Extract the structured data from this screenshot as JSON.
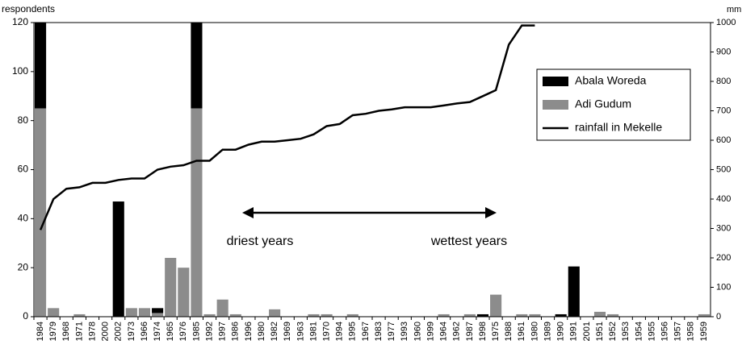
{
  "chart_data": {
    "type": "bar",
    "stacked": true,
    "y_label": "respondents",
    "y2_label": "mm",
    "annotations": [
      "driest years",
      "wettest years"
    ],
    "categories": [
      "1984",
      "1979",
      "1968",
      "1971",
      "1978",
      "2000",
      "2002",
      "1973",
      "1966",
      "1974",
      "1965",
      "1976",
      "1985",
      "1992",
      "1997",
      "1986",
      "1996",
      "1980",
      "1982",
      "1969",
      "1963",
      "1981",
      "1970",
      "1994",
      "1995",
      "1967",
      "1983",
      "1977",
      "1993",
      "1960",
      "1999",
      "1964",
      "1962",
      "1987",
      "1998",
      "1975",
      "1988",
      "1961",
      "1980",
      "1989",
      "1990",
      "1991",
      "2001",
      "1951",
      "1952",
      "1953",
      "1954",
      "1955",
      "1956",
      "1957",
      "1958",
      "1959"
    ],
    "series": [
      {
        "name": "Abala Woreda",
        "color": "#000000",
        "stack_order": 1,
        "values": [
          35,
          0,
          0,
          0,
          0,
          0,
          47,
          0,
          0,
          2,
          0,
          0,
          35,
          0,
          0,
          0,
          0,
          0,
          0,
          0,
          0,
          0,
          0,
          0,
          0,
          0,
          0,
          0,
          0,
          0,
          0,
          0,
          0,
          0,
          1,
          0,
          0,
          0,
          0,
          0,
          1,
          20.5,
          0,
          0,
          0,
          0,
          0,
          0,
          0,
          0,
          0,
          0
        ]
      },
      {
        "name": "Adi Gudum",
        "color": "#8c8c8c",
        "stack_order": 0,
        "values": [
          85,
          3.5,
          0,
          1,
          0,
          0,
          0,
          3.5,
          3.5,
          1.5,
          24,
          20,
          85,
          1,
          7,
          1,
          0,
          0,
          3,
          0,
          0,
          1,
          1,
          0,
          1,
          0,
          0,
          0,
          0,
          0,
          0,
          1,
          0,
          1,
          0,
          9,
          0,
          1,
          1,
          0,
          0,
          0,
          0,
          2,
          1,
          0,
          0,
          0,
          0,
          0,
          0,
          1
        ]
      },
      {
        "name": "rainfall in Mekelle",
        "color": "#000000",
        "type": "line",
        "axis": "y2",
        "values": [
          295,
          400,
          435,
          440,
          455,
          455,
          465,
          470,
          470,
          500,
          510,
          515,
          530,
          530,
          568,
          568,
          585,
          595,
          595,
          600,
          605,
          620,
          648,
          655,
          685,
          690,
          700,
          705,
          712,
          712,
          712,
          718,
          725,
          730,
          750,
          770,
          925,
          990,
          990,
          null,
          null,
          null,
          null,
          null,
          null,
          null,
          null,
          null,
          null,
          null,
          null,
          null
        ]
      }
    ],
    "ylim": [
      0,
      120
    ],
    "yticks": [
      0,
      20,
      40,
      60,
      80,
      100,
      120
    ],
    "y2lim": [
      0,
      1000
    ],
    "y2ticks": [
      0,
      100,
      200,
      300,
      400,
      500,
      600,
      700,
      800,
      900,
      1000
    ],
    "grid": false,
    "legend": "upper right"
  }
}
